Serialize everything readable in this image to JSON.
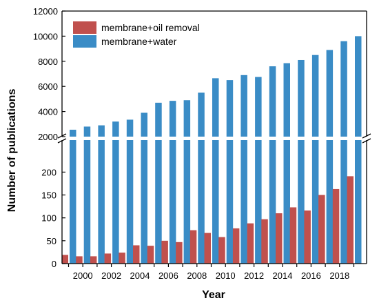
{
  "chart_data": {
    "type": "bar",
    "xlabel": "Year",
    "ylabel": "Number of publications",
    "axis_break": true,
    "upper_ylim": [
      2000,
      12000
    ],
    "upper_yticks": [
      2000,
      4000,
      6000,
      8000,
      10000,
      12000
    ],
    "lower_ylim": [
      0,
      270
    ],
    "lower_yticks": [
      0,
      50,
      100,
      150,
      200
    ],
    "categories": [
      1999,
      2000,
      2001,
      2002,
      2003,
      2004,
      2005,
      2006,
      2007,
      2008,
      2009,
      2010,
      2011,
      2012,
      2013,
      2014,
      2015,
      2016,
      2017,
      2018,
      2019
    ],
    "xtick_labels": [
      2000,
      2002,
      2004,
      2006,
      2008,
      2010,
      2012,
      2014,
      2016,
      2018
    ],
    "legend_position": "top-left",
    "series": [
      {
        "name": "membrane+oil removal",
        "color": "#c0504d",
        "values": [
          19,
          16,
          16,
          22,
          24,
          40,
          39,
          50,
          47,
          73,
          67,
          58,
          77,
          88,
          97,
          110,
          123,
          116,
          150,
          163,
          191
        ]
      },
      {
        "name": "membrane+water",
        "color": "#3a8cc6",
        "values": [
          2550,
          2800,
          2900,
          3200,
          3350,
          3900,
          4700,
          4850,
          4900,
          5500,
          6650,
          6500,
          6900,
          6750,
          7600,
          7850,
          8100,
          8500,
          8900,
          9600,
          10000
        ]
      }
    ]
  }
}
